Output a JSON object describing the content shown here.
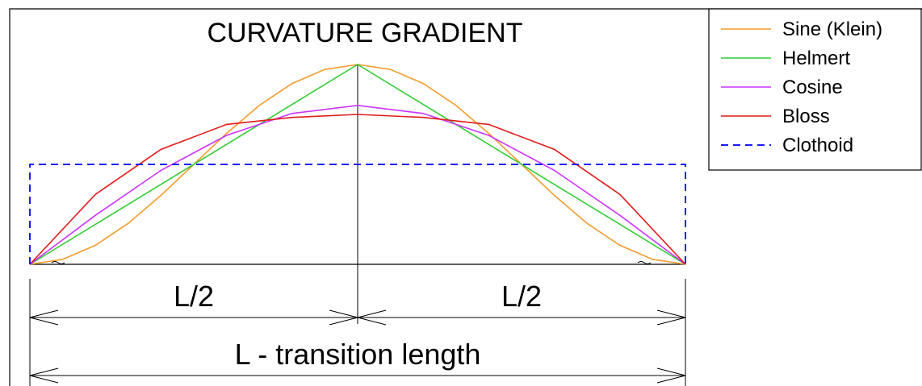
{
  "title": "CURVATURE GRADIENT",
  "dimensions": {
    "half_left": "L/2",
    "half_right": "L/2",
    "full": "L - transition length"
  },
  "colors": {
    "sine": "#f39c2d",
    "helmert": "#33cc33",
    "cosine": "#cc33ff",
    "bloss": "#e31919",
    "clothoid": "#1a1aff",
    "lines": "#000000"
  },
  "legend": [
    {
      "key": "sine",
      "label": "Sine (Klein)",
      "style": "solid"
    },
    {
      "key": "helmert",
      "label": "Helmert",
      "style": "solid"
    },
    {
      "key": "cosine",
      "label": "Cosine",
      "style": "solid"
    },
    {
      "key": "bloss",
      "label": "Bloss",
      "style": "solid"
    },
    {
      "key": "clothoid",
      "label": "Clothoid",
      "style": "dashed"
    }
  ],
  "chart_data": {
    "type": "line",
    "title": "CURVATURE GRADIENT",
    "xlabel": "L - transition length",
    "x_range": [
      0,
      1
    ],
    "series": [
      {
        "name": "Sine (Klein)",
        "x": [
          0,
          0.05,
          0.1,
          0.15,
          0.2,
          0.25,
          0.3,
          0.35,
          0.4,
          0.45,
          0.5,
          0.55,
          0.6,
          0.65,
          0.7,
          0.75,
          0.8,
          0.85,
          0.9,
          0.95,
          1
        ],
        "y": [
          0,
          0.05,
          0.19,
          0.41,
          0.69,
          1.0,
          1.31,
          1.59,
          1.81,
          1.95,
          2.0,
          1.95,
          1.81,
          1.59,
          1.31,
          1.0,
          0.69,
          0.41,
          0.19,
          0.05,
          0
        ]
      },
      {
        "name": "Helmert",
        "x": [
          0,
          0.5,
          1
        ],
        "y": [
          0,
          2.0,
          0
        ]
      },
      {
        "name": "Cosine",
        "x": [
          0,
          0.1,
          0.2,
          0.3,
          0.4,
          0.5,
          0.6,
          0.7,
          0.8,
          0.9,
          1
        ],
        "y": [
          0,
          0.49,
          0.94,
          1.29,
          1.51,
          1.59,
          1.51,
          1.29,
          0.94,
          0.49,
          0
        ]
      },
      {
        "name": "Bloss",
        "x": [
          0,
          0.1,
          0.2,
          0.3,
          0.4,
          0.5,
          0.6,
          0.7,
          0.8,
          0.9,
          1
        ],
        "y": [
          0,
          0.7,
          1.15,
          1.4,
          1.47,
          1.5,
          1.47,
          1.4,
          1.15,
          0.7,
          0
        ]
      },
      {
        "name": "Clothoid",
        "x": [
          0,
          0,
          1,
          1
        ],
        "y": [
          0,
          1.0,
          1.0,
          0
        ]
      }
    ]
  }
}
